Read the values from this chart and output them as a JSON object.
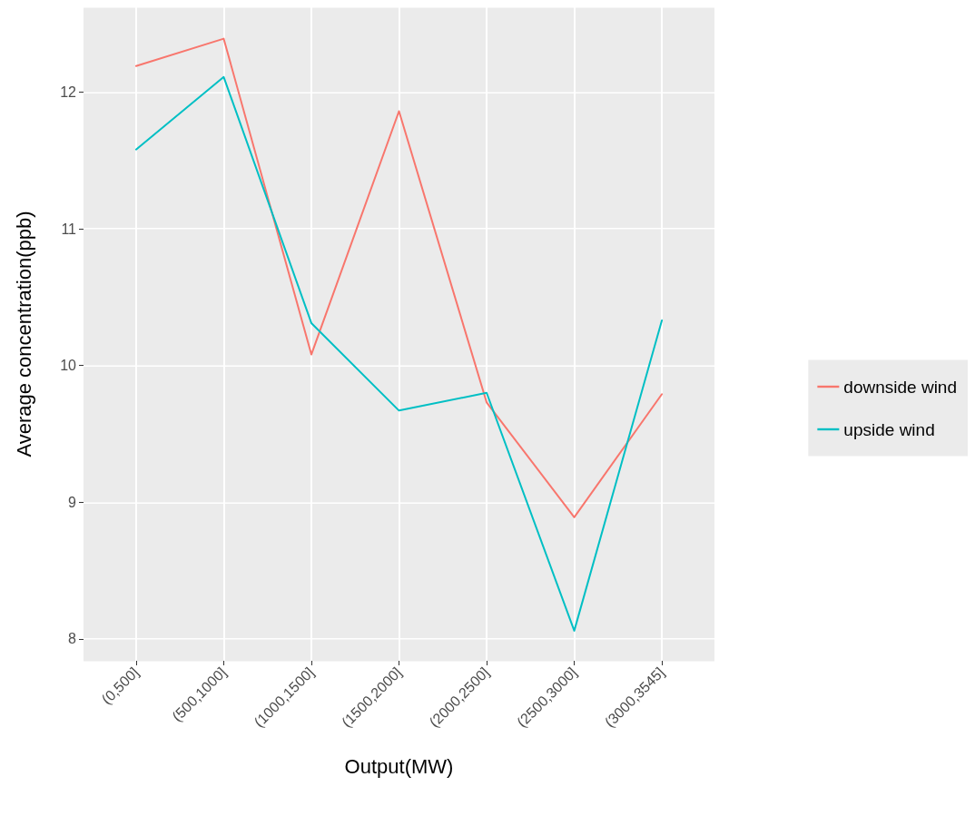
{
  "chart_data": {
    "type": "line",
    "xlabel": "Output(MW)",
    "ylabel": "Average concentration(ppb)",
    "categories": [
      "(0,500]",
      "(500,1000]",
      "(1000,1500]",
      "(1500,2000]",
      "(2000,2500]",
      "(2500,3000]",
      "(3000,3545]"
    ],
    "series": [
      {
        "name": "downside wind",
        "color": "#f8766d",
        "values": [
          12.19,
          12.39,
          10.08,
          11.86,
          9.73,
          8.89,
          9.79
        ]
      },
      {
        "name": "upside wind",
        "color": "#00bfc4",
        "values": [
          11.58,
          12.11,
          10.31,
          9.67,
          9.8,
          8.06,
          10.33
        ]
      }
    ],
    "ylim": [
      7.84,
      12.62
    ],
    "yticks": [
      8,
      9,
      10,
      11,
      12
    ],
    "grid": true,
    "legend": "right",
    "marker": "none",
    "line_style": "solid"
  }
}
